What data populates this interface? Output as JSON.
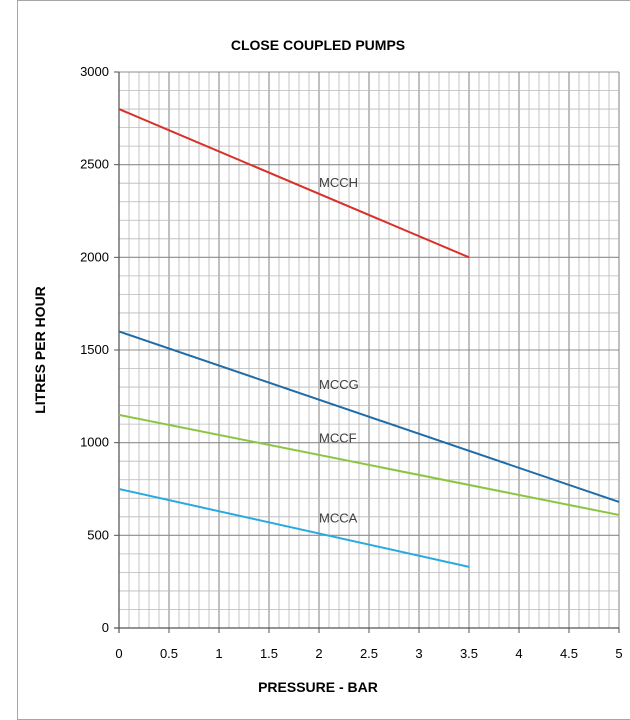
{
  "chart_data": {
    "type": "line",
    "title": "CLOSE COUPLED PUMPS",
    "xlabel": "PRESSURE - BAR",
    "ylabel": "LITRES PER HOUR",
    "xlim": [
      0,
      5
    ],
    "ylim": [
      0,
      3000
    ],
    "x_ticks": [
      "0",
      "0.5",
      "1",
      "1.5",
      "2",
      "2.5",
      "3",
      "3.5",
      "4",
      "4.5",
      "5"
    ],
    "y_ticks": [
      "0",
      "500",
      "1000",
      "1500",
      "2000",
      "2500",
      "3000"
    ],
    "grid": true,
    "series": [
      {
        "name": "MCCH",
        "color": "#d9302a",
        "points": [
          [
            0,
            2800
          ],
          [
            3.5,
            2000
          ]
        ],
        "label_at": [
          2.0,
          2380
        ]
      },
      {
        "name": "MCCG",
        "color": "#1f6ca8",
        "points": [
          [
            0,
            1600
          ],
          [
            5,
            680
          ]
        ],
        "label_at": [
          2.0,
          1290
        ]
      },
      {
        "name": "MCCF",
        "color": "#8bc43f",
        "points": [
          [
            0,
            1150
          ],
          [
            5,
            610
          ]
        ],
        "label_at": [
          2.0,
          1000
        ]
      },
      {
        "name": "MCCA",
        "color": "#27a9e1",
        "points": [
          [
            0,
            750
          ],
          [
            3.5,
            330
          ]
        ],
        "label_at": [
          2.0,
          570
        ]
      }
    ]
  }
}
